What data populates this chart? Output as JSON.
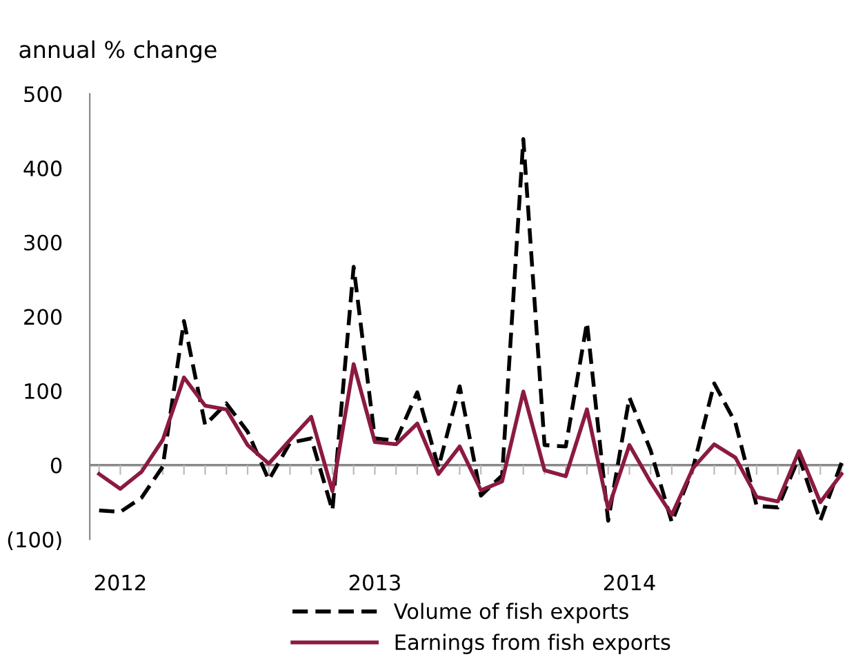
{
  "chart_data": {
    "type": "line",
    "ylabel": "annual % change",
    "categories": [
      null,
      "2012",
      null,
      null,
      null,
      null,
      null,
      null,
      null,
      null,
      null,
      null,
      null,
      "2013",
      null,
      null,
      null,
      null,
      null,
      null,
      null,
      null,
      null,
      null,
      null,
      "2014",
      null,
      null,
      null,
      null,
      null,
      null,
      null,
      null,
      null,
      null
    ],
    "series": [
      {
        "name": "Volume of fish exports",
        "color": "#000000",
        "line_style": "dashed",
        "values": [
          -61,
          -63,
          -44,
          -2,
          194,
          54,
          83,
          45,
          -20,
          30,
          36,
          -61,
          267,
          36,
          33,
          98,
          -3,
          106,
          -41,
          -14,
          439,
          27,
          25,
          192,
          -75,
          91,
          20,
          -77,
          -4,
          110,
          57,
          -55,
          -57,
          11,
          -75,
          3
        ]
      },
      {
        "name": "Earnings from fish exports",
        "color": "#8b1a42",
        "line_style": "solid",
        "values": [
          -12,
          -32,
          -9,
          34,
          118,
          80,
          75,
          27,
          2,
          34,
          65,
          -35,
          136,
          31,
          28,
          56,
          -12,
          25,
          -34,
          -22,
          99,
          -7,
          -15,
          75,
          -59,
          27,
          -23,
          -67,
          -4,
          28,
          10,
          -43,
          -49,
          19,
          -50,
          -12
        ]
      }
    ],
    "ylim": [
      -100,
      500
    ],
    "yticks": [
      {
        "value": -100,
        "label": "(100)"
      },
      0,
      100,
      200,
      300,
      400,
      500
    ],
    "ref_lines": [
      {
        "axis": "y",
        "value": 0,
        "color": "#888888"
      }
    ],
    "grid": false,
    "legend": "bottom"
  }
}
